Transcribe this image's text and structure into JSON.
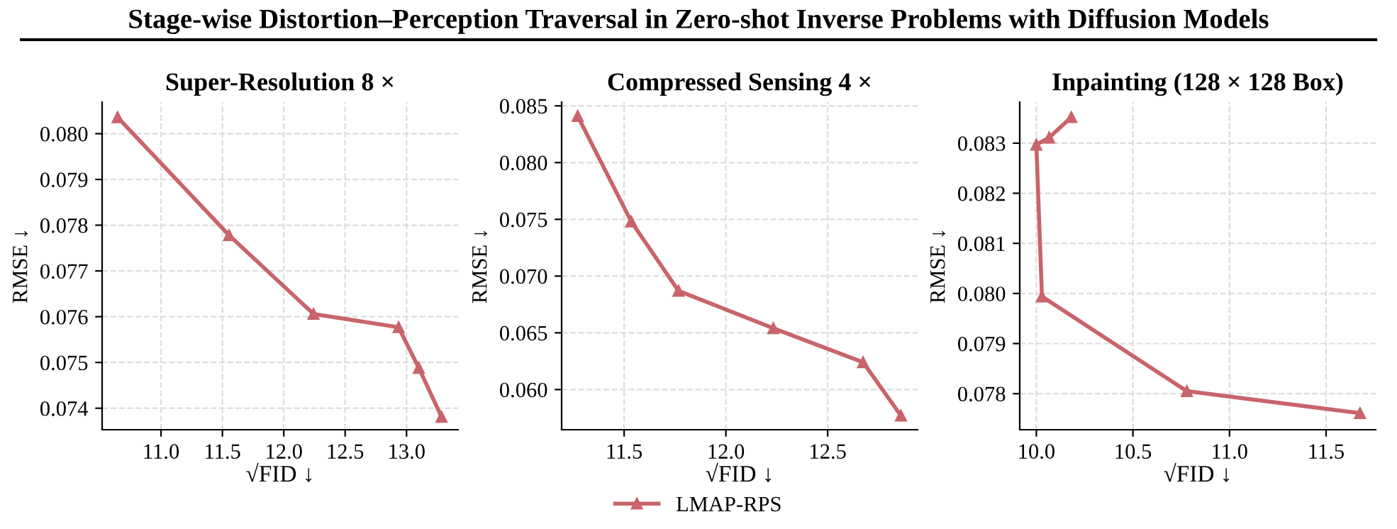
{
  "chart_data": [
    {
      "type": "line",
      "title": "Super-Resolution 8 ×",
      "xlabel": "√FID ↓",
      "ylabel": "RMSE ↓",
      "annotations": [
        "Stage-wise Distortion–Perception Traversal in Zero-shot Inverse Problems with Diffusion Models"
      ],
      "series": [
        {
          "color": "#c8646a",
          "x": [
            10.646,
            11.554,
            12.242,
            12.935,
            13.1,
            13.285
          ],
          "values": [
            0.08036,
            0.07778,
            0.07606,
            0.07577,
            0.07488,
            0.07381
          ]
        }
      ],
      "xlim": [
        10.52,
        13.42
      ],
      "xticks": [
        {
          "value": 11,
          "label": "11.0"
        },
        11.5,
        {
          "value": 12,
          "label": "12.0"
        },
        12.5,
        {
          "value": 13,
          "label": "13.0"
        }
      ],
      "ylim": [
        0.07353,
        0.08069
      ],
      "yticks": [
        {
          "value": 0.074,
          "label": "0.074"
        },
        {
          "value": 0.075,
          "label": "0.075"
        },
        {
          "value": 0.076,
          "label": "0.076"
        },
        {
          "value": 0.077,
          "label": "0.077"
        },
        {
          "value": 0.078,
          "label": "0.078"
        },
        {
          "value": 0.079,
          "label": "0.079"
        },
        {
          "value": 0.08,
          "label": "0.080"
        }
      ],
      "grid": true,
      "marker": "triangle",
      "line_style": "solid"
    },
    {
      "type": "line",
      "title": "Compressed Sensing 4 ×",
      "xlabel": "√FID ↓",
      "ylabel": "RMSE ↓",
      "series": [
        {
          "name": "LMAP-RPS",
          "color": "#c8646a",
          "x": [
            11.272,
            11.535,
            11.767,
            12.233,
            12.674,
            12.86
          ],
          "values": [
            0.0841,
            0.0748,
            0.0687,
            0.0654,
            0.0624,
            0.0577
          ]
        }
      ],
      "xlim": [
        11.193,
        12.942
      ],
      "xticks": [
        11.5,
        {
          "value": 12,
          "label": "12.0"
        },
        12.5
      ],
      "ylim": [
        0.05646,
        0.08533
      ],
      "yticks": [
        {
          "value": 0.06,
          "label": "0.060"
        },
        {
          "value": 0.065,
          "label": "0.065"
        },
        {
          "value": 0.07,
          "label": "0.070"
        },
        {
          "value": 0.075,
          "label": "0.075"
        },
        {
          "value": 0.08,
          "label": "0.080"
        },
        {
          "value": 0.085,
          "label": "0.085"
        }
      ],
      "grid": true,
      "legend": "bottom",
      "marker": "triangle",
      "line_style": "solid"
    },
    {
      "type": "line",
      "title": "Inpainting (128 × 128 Box)",
      "xlabel": "√FID ↓",
      "ylabel": "RMSE ↓",
      "series": [
        {
          "color": "#c8646a",
          "x": [
            10.181,
            10.066,
            10.0,
            10.029,
            10.779,
            11.676
          ],
          "values": [
            0.08352,
            0.08311,
            0.08297,
            0.07994,
            0.07805,
            0.07761
          ]
        }
      ],
      "xlim": [
        9.914,
        11.757
      ],
      "xticks": [
        {
          "value": 10,
          "label": "10.0"
        },
        10.5,
        {
          "value": 11,
          "label": "11.0"
        },
        11.5
      ],
      "ylim": [
        0.07728,
        0.08382
      ],
      "yticks": [
        {
          "value": 0.078,
          "label": "0.078"
        },
        {
          "value": 0.079,
          "label": "0.079"
        },
        {
          "value": 0.08,
          "label": "0.080"
        },
        {
          "value": 0.081,
          "label": "0.081"
        },
        {
          "value": 0.082,
          "label": "0.082"
        },
        {
          "value": 0.083,
          "label": "0.083"
        }
      ],
      "grid": true,
      "marker": "triangle",
      "line_style": "solid"
    }
  ]
}
